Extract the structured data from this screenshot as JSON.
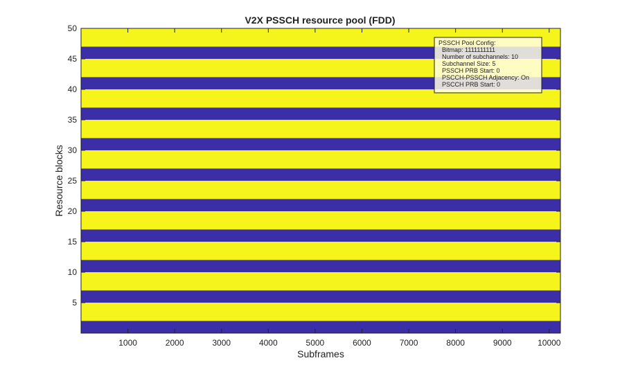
{
  "chart_data": {
    "type": "heatmap",
    "title": "V2X PSSCH resource pool (FDD)",
    "xlabel": "Subframes",
    "ylabel": "Resource blocks",
    "xlim": [
      0,
      10240
    ],
    "ylim": [
      0,
      50
    ],
    "xticks": [
      1000,
      2000,
      3000,
      4000,
      5000,
      6000,
      7000,
      8000,
      9000,
      10000
    ],
    "yticks": [
      5,
      10,
      15,
      20,
      25,
      30,
      35,
      40,
      45,
      50
    ],
    "colors": {
      "pssch": "#f5f51b",
      "pscch": "#3b2ea6"
    },
    "subchannel_size": 5,
    "num_subchannels": 10,
    "pscch_rows_per_subchannel": 2,
    "pscch_rb_ranges": [
      [
        0,
        2
      ],
      [
        5,
        7
      ],
      [
        10,
        12
      ],
      [
        15,
        17
      ],
      [
        20,
        22
      ],
      [
        25,
        27
      ],
      [
        30,
        32
      ],
      [
        35,
        37
      ],
      [
        40,
        42
      ],
      [
        45,
        47
      ]
    ],
    "pssch_rb_ranges": [
      [
        2,
        5
      ],
      [
        7,
        10
      ],
      [
        12,
        15
      ],
      [
        17,
        20
      ],
      [
        22,
        25
      ],
      [
        27,
        30
      ],
      [
        32,
        35
      ],
      [
        37,
        40
      ],
      [
        42,
        45
      ],
      [
        47,
        50
      ]
    ],
    "annotation": {
      "lines": [
        "PSSCH Pool Config:",
        "  Bitmap: 1111111111",
        "  Number of subchannels: 10",
        "  Subchannel Size: 5",
        "  PSSCH PRB Start: 0",
        "  PSCCH-PSSCH Adjacency: On",
        "  PSCCH PRB Start: 0"
      ],
      "position": "top-right"
    },
    "grid": false,
    "legend": "none"
  }
}
